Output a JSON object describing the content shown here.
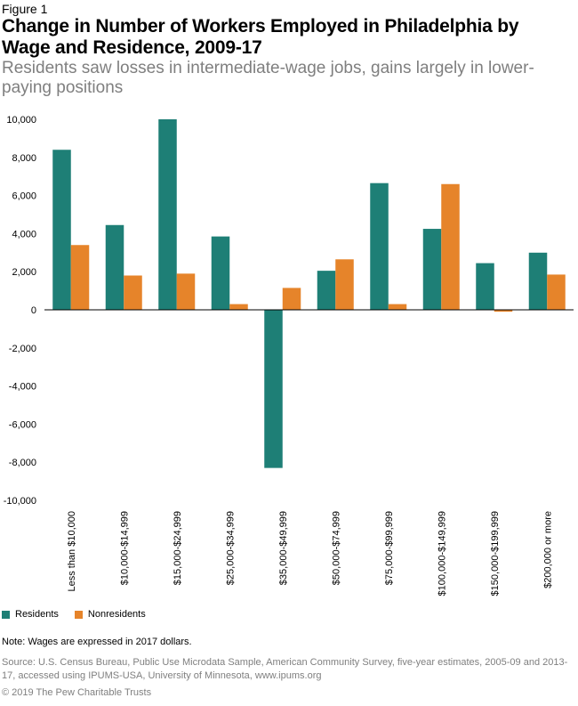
{
  "figure_label": "Figure 1",
  "title": "Change in Number of Workers Employed in Philadelphia by Wage and Residence, 2009-17",
  "subtitle": "Residents saw losses in intermediate-wage jobs, gains largely in lower-paying positions",
  "note": "Note: Wages are expressed in 2017 dollars.",
  "source": "Source: U.S. Census Bureau, Public Use Microdata Sample, American Community Survey, five-year estimates, 2005-09 and 2013-17, accessed using IPUMS-USA, University of Minnesota, www.ipums.org",
  "copyright": "© 2019 The Pew Charitable Trusts",
  "colors": {
    "residents": "#1e7f76",
    "nonresidents": "#e6842a"
  },
  "chart_data": {
    "type": "bar",
    "title": "",
    "xlabel": "",
    "ylabel": "",
    "ylim": [
      -10000,
      10000
    ],
    "yticks": [
      10000,
      8000,
      6000,
      4000,
      2000,
      0,
      -2000,
      -4000,
      -6000,
      -8000,
      -10000
    ],
    "ytick_labels": [
      "10,000",
      "8,000",
      "6,000",
      "4,000",
      "2,000",
      "0",
      "-2,000",
      "-4,000",
      "-6,000",
      "-8,000",
      "-10,000"
    ],
    "grid": false,
    "legend_position": "bottom-left",
    "categories": [
      "Less than $10,000",
      "$10,000-$14,999",
      "$15,000-$24,999",
      "$25,000-$34,999",
      "$35,000-$49,999",
      "$50,000-$74,999",
      "$75,000-$99,999",
      "$100,000-$149,999",
      "$150,000-$199,999",
      "$200,000 or more"
    ],
    "series": [
      {
        "name": "Residents",
        "values": [
          8400,
          4450,
          10000,
          3850,
          -8300,
          2050,
          6650,
          4250,
          2450,
          3000
        ]
      },
      {
        "name": "Nonresidents",
        "values": [
          3400,
          1800,
          1900,
          300,
          1150,
          2650,
          300,
          6600,
          -100,
          1850
        ]
      }
    ]
  }
}
